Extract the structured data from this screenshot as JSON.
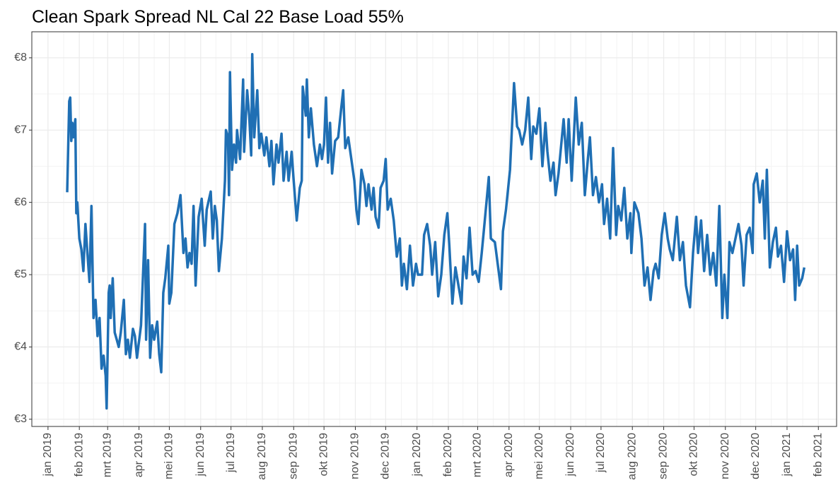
{
  "chart_data": {
    "type": "line",
    "title": "Clean Spark Spread NL Cal 22 Base Load 55%",
    "xlim": [
      "2018-12-16",
      "2021-02-19"
    ],
    "ylim": [
      2.9,
      8.36
    ],
    "yticks": [
      {
        "value": 3,
        "label": "€3"
      },
      {
        "value": 4,
        "label": "€4"
      },
      {
        "value": 5,
        "label": "€5"
      },
      {
        "value": 6,
        "label": "€6"
      },
      {
        "value": 7,
        "label": "€7"
      },
      {
        "value": 8,
        "label": "€8"
      }
    ],
    "xticks": [
      {
        "value": "2019-01-01",
        "label": "jan 2019"
      },
      {
        "value": "2019-02-01",
        "label": "feb 2019"
      },
      {
        "value": "2019-03-01",
        "label": "mrt 2019"
      },
      {
        "value": "2019-04-01",
        "label": "apr 2019"
      },
      {
        "value": "2019-05-01",
        "label": "mei 2019"
      },
      {
        "value": "2019-06-01",
        "label": "jun 2019"
      },
      {
        "value": "2019-07-01",
        "label": "jul 2019"
      },
      {
        "value": "2019-08-01",
        "label": "aug 2019"
      },
      {
        "value": "2019-09-01",
        "label": "sep 2019"
      },
      {
        "value": "2019-10-01",
        "label": "okt 2019"
      },
      {
        "value": "2019-11-01",
        "label": "nov 2019"
      },
      {
        "value": "2019-12-01",
        "label": "dec 2019"
      },
      {
        "value": "2020-01-01",
        "label": "jan 2020"
      },
      {
        "value": "2020-02-01",
        "label": "feb 2020"
      },
      {
        "value": "2020-03-01",
        "label": "mrt 2020"
      },
      {
        "value": "2020-04-01",
        "label": "apr 2020"
      },
      {
        "value": "2020-05-01",
        "label": "mei 2020"
      },
      {
        "value": "2020-06-01",
        "label": "jun 2020"
      },
      {
        "value": "2020-07-01",
        "label": "jul 2020"
      },
      {
        "value": "2020-08-01",
        "label": "aug 2020"
      },
      {
        "value": "2020-09-01",
        "label": "sep 2020"
      },
      {
        "value": "2020-10-01",
        "label": "okt 2020"
      },
      {
        "value": "2020-11-01",
        "label": "nov 2020"
      },
      {
        "value": "2020-12-01",
        "label": "dec 2020"
      },
      {
        "value": "2021-01-01",
        "label": "jan 2021"
      },
      {
        "value": "2021-02-01",
        "label": "feb 2021"
      }
    ],
    "grid": true,
    "color": "#1f6fb4",
    "x": [
      "2019-01-20",
      "2019-01-22",
      "2019-01-23",
      "2019-01-24",
      "2019-01-25",
      "2019-01-26",
      "2019-01-28",
      "2019-01-29",
      "2019-01-30",
      "2019-02-01",
      "2019-02-03",
      "2019-02-05",
      "2019-02-07",
      "2019-02-09",
      "2019-02-11",
      "2019-02-13",
      "2019-02-15",
      "2019-02-17",
      "2019-02-19",
      "2019-02-21",
      "2019-02-23",
      "2019-02-25",
      "2019-02-27",
      "2019-02-28",
      "2019-03-02",
      "2019-03-03",
      "2019-03-04",
      "2019-03-06",
      "2019-03-08",
      "2019-03-10",
      "2019-03-12",
      "2019-03-14",
      "2019-03-17",
      "2019-03-19",
      "2019-03-21",
      "2019-03-23",
      "2019-03-26",
      "2019-03-28",
      "2019-03-30",
      "2019-04-03",
      "2019-04-07",
      "2019-04-08",
      "2019-04-10",
      "2019-04-12",
      "2019-04-14",
      "2019-04-16",
      "2019-04-19",
      "2019-04-21",
      "2019-04-23",
      "2019-04-25",
      "2019-04-27",
      "2019-04-30",
      "2019-05-01",
      "2019-05-03",
      "2019-05-06",
      "2019-05-09",
      "2019-05-12",
      "2019-05-15",
      "2019-05-17",
      "2019-05-19",
      "2019-05-21",
      "2019-05-23",
      "2019-05-25",
      "2019-05-27",
      "2019-05-30",
      "2019-06-02",
      "2019-06-05",
      "2019-06-07",
      "2019-06-11",
      "2019-06-13",
      "2019-06-15",
      "2019-06-17",
      "2019-06-19",
      "2019-06-22",
      "2019-06-25",
      "2019-06-26",
      "2019-06-28",
      "2019-06-29",
      "2019-06-30",
      "2019-07-02",
      "2019-07-04",
      "2019-07-06",
      "2019-07-07",
      "2019-07-10",
      "2019-07-13",
      "2019-07-14",
      "2019-07-17",
      "2019-07-19",
      "2019-07-21",
      "2019-07-22",
      "2019-07-24",
      "2019-07-27",
      "2019-07-29",
      "2019-07-31",
      "2019-08-03",
      "2019-08-05",
      "2019-08-08",
      "2019-08-10",
      "2019-08-12",
      "2019-08-15",
      "2019-08-17",
      "2019-08-20",
      "2019-08-22",
      "2019-08-25",
      "2019-08-27",
      "2019-08-30",
      "2019-09-01",
      "2019-09-04",
      "2019-09-07",
      "2019-09-09",
      "2019-09-10",
      "2019-09-13",
      "2019-09-14",
      "2019-09-16",
      "2019-09-18",
      "2019-09-21",
      "2019-09-24",
      "2019-09-27",
      "2019-09-29",
      "2019-10-01",
      "2019-10-03",
      "2019-10-05",
      "2019-10-07",
      "2019-10-09",
      "2019-10-12",
      "2019-10-15",
      "2019-10-18",
      "2019-10-20",
      "2019-10-22",
      "2019-10-25",
      "2019-10-28",
      "2019-10-31",
      "2019-11-02",
      "2019-11-04",
      "2019-11-07",
      "2019-11-10",
      "2019-11-12",
      "2019-11-14",
      "2019-11-17",
      "2019-11-19",
      "2019-11-21",
      "2019-11-24",
      "2019-11-26",
      "2019-11-29",
      "2019-12-01",
      "2019-12-03",
      "2019-12-06",
      "2019-12-09",
      "2019-12-12",
      "2019-12-15",
      "2019-12-17",
      "2019-12-19",
      "2019-12-22",
      "2019-12-25",
      "2019-12-28",
      "2019-12-31",
      "2020-01-02",
      "2020-01-06",
      "2020-01-08",
      "2020-01-11",
      "2020-01-14",
      "2020-01-16",
      "2020-01-19",
      "2020-01-22",
      "2020-01-25",
      "2020-01-28",
      "2020-01-31",
      "2020-02-02",
      "2020-02-05",
      "2020-02-08",
      "2020-02-11",
      "2020-02-14",
      "2020-02-16",
      "2020-02-19",
      "2020-02-22",
      "2020-02-25",
      "2020-02-28",
      "2020-03-02",
      "2020-03-05",
      "2020-03-07",
      "2020-03-12",
      "2020-03-14",
      "2020-03-18",
      "2020-03-24",
      "2020-03-26",
      "2020-03-29",
      "2020-04-02",
      "2020-04-06",
      "2020-04-09",
      "2020-04-11",
      "2020-04-14",
      "2020-04-17",
      "2020-04-20",
      "2020-04-23",
      "2020-04-25",
      "2020-04-28",
      "2020-05-01",
      "2020-05-04",
      "2020-05-07",
      "2020-05-09",
      "2020-05-12",
      "2020-05-15",
      "2020-05-17",
      "2020-05-20",
      "2020-05-25",
      "2020-05-28",
      "2020-05-30",
      "2020-06-02",
      "2020-06-06",
      "2020-06-09",
      "2020-06-12",
      "2020-06-15",
      "2020-06-18",
      "2020-06-20",
      "2020-06-23",
      "2020-06-26",
      "2020-06-29",
      "2020-07-02",
      "2020-07-04",
      "2020-07-07",
      "2020-07-10",
      "2020-07-13",
      "2020-07-16",
      "2020-07-18",
      "2020-07-21",
      "2020-07-24",
      "2020-07-27",
      "2020-07-30",
      "2020-07-31",
      "2020-08-03",
      "2020-08-07",
      "2020-08-10",
      "2020-08-13",
      "2020-08-16",
      "2020-08-19",
      "2020-08-22",
      "2020-08-24",
      "2020-08-27",
      "2020-08-30",
      "2020-09-02",
      "2020-09-05",
      "2020-09-07",
      "2020-09-10",
      "2020-09-14",
      "2020-09-17",
      "2020-09-20",
      "2020-09-23",
      "2020-09-27",
      "2020-09-30",
      "2020-10-03",
      "2020-10-05",
      "2020-10-08",
      "2020-10-11",
      "2020-10-14",
      "2020-10-17",
      "2020-10-20",
      "2020-10-23",
      "2020-10-26",
      "2020-10-29",
      "2020-10-31",
      "2020-11-03",
      "2020-11-05",
      "2020-11-08",
      "2020-11-11",
      "2020-11-14",
      "2020-11-17",
      "2020-11-19",
      "2020-11-22",
      "2020-11-25",
      "2020-11-28",
      "2020-11-29",
      "2020-12-02",
      "2020-12-05",
      "2020-12-08",
      "2020-12-10",
      "2020-12-12",
      "2020-12-15",
      "2020-12-18",
      "2020-12-21",
      "2020-12-23",
      "2020-12-26",
      "2020-12-29",
      "2021-01-01",
      "2021-01-04",
      "2021-01-07",
      "2021-01-09",
      "2021-01-11",
      "2021-01-13",
      "2021-01-16",
      "2021-01-18"
    ],
    "values": [
      6.14,
      7.4,
      7.45,
      6.85,
      7.1,
      6.9,
      7.15,
      5.85,
      6.0,
      5.5,
      5.35,
      5.05,
      5.7,
      5.3,
      4.9,
      5.95,
      4.4,
      4.65,
      4.15,
      4.4,
      3.7,
      3.88,
      3.6,
      3.15,
      4.75,
      4.85,
      4.4,
      4.95,
      4.2,
      4.1,
      4.0,
      4.2,
      4.65,
      3.9,
      4.1,
      3.85,
      4.25,
      4.15,
      3.85,
      4.3,
      5.7,
      4.1,
      5.2,
      3.85,
      4.3,
      4.1,
      4.35,
      3.9,
      3.65,
      4.75,
      4.95,
      5.4,
      4.6,
      4.75,
      5.7,
      5.85,
      6.1,
      5.3,
      5.5,
      5.1,
      5.3,
      5.15,
      5.95,
      4.85,
      5.8,
      6.05,
      5.4,
      5.9,
      6.15,
      5.5,
      5.95,
      5.75,
      5.05,
      5.5,
      6.3,
      7.0,
      6.9,
      6.1,
      7.8,
      6.45,
      6.8,
      6.55,
      7.0,
      6.6,
      7.7,
      6.7,
      7.55,
      7.2,
      6.65,
      8.05,
      6.9,
      7.55,
      6.75,
      6.95,
      6.65,
      6.9,
      6.5,
      6.85,
      6.25,
      6.8,
      6.55,
      6.95,
      6.3,
      6.7,
      6.3,
      6.7,
      6.3,
      5.75,
      6.2,
      6.3,
      7.6,
      7.2,
      7.7,
      6.9,
      7.3,
      6.8,
      6.5,
      6.8,
      6.6,
      6.8,
      7.45,
      6.55,
      7.1,
      6.4,
      6.85,
      6.9,
      7.3,
      7.55,
      6.75,
      6.9,
      6.6,
      6.3,
      5.9,
      5.7,
      6.45,
      6.25,
      5.95,
      6.25,
      5.9,
      6.2,
      5.8,
      5.65,
      6.2,
      6.3,
      6.6,
      5.9,
      6.05,
      5.75,
      5.25,
      5.5,
      4.85,
      5.15,
      4.8,
      5.4,
      4.85,
      5.15,
      5.0,
      5.0,
      5.55,
      5.7,
      5.4,
      5.0,
      5.45,
      4.7,
      5.0,
      5.55,
      5.85,
      5.4,
      4.6,
      5.1,
      4.85,
      4.6,
      5.25,
      4.95,
      5.65,
      5.0,
      5.05,
      4.9,
      5.3,
      5.6,
      6.35,
      5.5,
      5.45,
      4.8,
      5.6,
      5.9,
      6.45,
      7.65,
      7.05,
      7.0,
      6.8,
      7.0,
      7.45,
      6.6,
      7.05,
      6.95,
      7.3,
      6.5,
      7.1,
      6.7,
      6.3,
      6.55,
      6.1,
      6.4,
      7.15,
      6.55,
      7.15,
      6.3,
      7.45,
      6.8,
      7.1,
      6.1,
      6.6,
      6.9,
      6.1,
      6.35,
      6.0,
      6.25,
      5.7,
      6.05,
      5.5,
      6.75,
      5.55,
      5.95,
      5.75,
      6.2,
      5.5,
      5.85,
      5.3,
      6.0,
      5.85,
      5.5,
      4.85,
      5.1,
      4.65,
      5.05,
      5.15,
      4.95,
      5.55,
      5.85,
      5.5,
      5.35,
      5.2,
      5.8,
      5.2,
      5.45,
      4.85,
      4.55,
      5.3,
      5.8,
      5.3,
      5.75,
      5.05,
      5.55,
      5.0,
      5.3,
      4.85,
      5.95,
      4.4,
      5.0,
      4.4,
      5.45,
      5.3,
      5.5,
      5.7,
      5.4,
      4.85,
      5.55,
      5.65,
      5.3,
      6.25,
      6.4,
      6.0,
      6.3,
      5.5,
      6.45,
      5.1,
      5.45,
      5.65,
      5.25,
      5.4,
      4.9,
      5.6,
      5.2,
      5.35,
      4.65,
      5.4,
      4.85,
      4.95,
      5.1
    ]
  }
}
